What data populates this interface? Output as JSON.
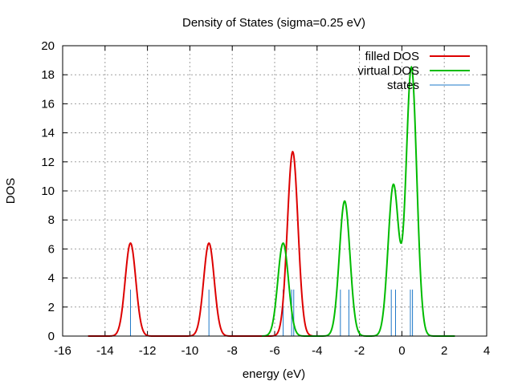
{
  "chart_data": {
    "type": "line",
    "title": "Density of States (sigma=0.25 eV)",
    "xlabel": "energy (eV)",
    "ylabel": "DOS",
    "xlim": [
      -16,
      4
    ],
    "ylim": [
      0,
      20
    ],
    "x_ticks": [
      -16,
      -14,
      -12,
      -10,
      -8,
      -6,
      -4,
      -2,
      0,
      2,
      4
    ],
    "y_ticks": [
      0,
      2,
      4,
      6,
      8,
      10,
      12,
      14,
      16,
      18,
      20
    ],
    "x_tick_labels": [
      "-16",
      "-14",
      "-12",
      "-10",
      "-8",
      "-6",
      "-4",
      "-2",
      "0",
      "2",
      "4"
    ],
    "y_tick_labels": [
      "0",
      "2",
      "4",
      "6",
      "8",
      "10",
      "12",
      "14",
      "16",
      "18",
      "20"
    ],
    "grid": true,
    "legend_position": "top-right",
    "sigma": 0.25,
    "series": [
      {
        "name": "filled DOS",
        "color": "#dd0000",
        "x_range": [
          -14.8,
          -4.2
        ],
        "peaks": [
          {
            "x": -12.8,
            "y": 6.4
          },
          {
            "x": -9.1,
            "y": 6.4
          },
          {
            "x": -5.15,
            "y": 12.7
          }
        ]
      },
      {
        "name": "virtual DOS",
        "color": "#00bb00",
        "x_range": [
          -6.6,
          2.5
        ],
        "peaks": [
          {
            "x": -5.6,
            "y": 6.4
          },
          {
            "x": -2.7,
            "y": 9.3
          },
          {
            "x": -0.4,
            "y": 10.4
          },
          {
            "x": 0.45,
            "y": 18.5
          }
        ]
      },
      {
        "name": "states",
        "color": "#1e78c8",
        "type": "impulse",
        "x": [
          -12.8,
          -9.1,
          -5.6,
          -5.2,
          -5.1,
          -2.9,
          -2.5,
          -0.5,
          -0.3,
          0.4,
          0.5
        ],
        "y": [
          3.2,
          3.2,
          3.2,
          3.2,
          3.2,
          3.2,
          3.2,
          3.2,
          3.2,
          3.2,
          3.2
        ]
      }
    ]
  }
}
